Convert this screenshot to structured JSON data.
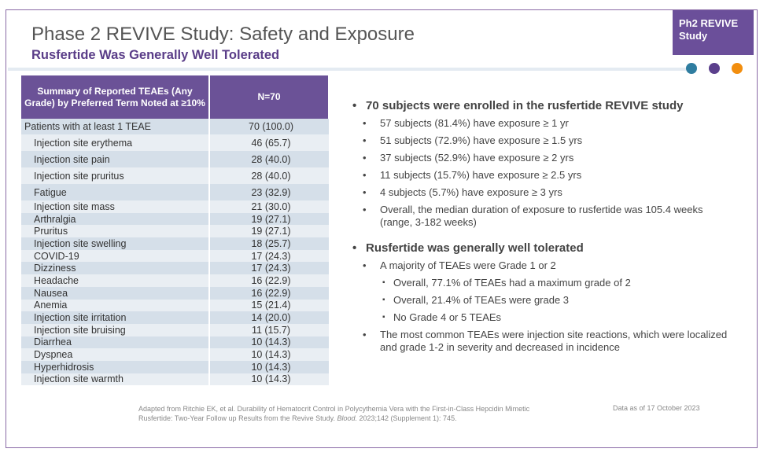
{
  "header": {
    "title": "Phase 2 REVIVE Study: Safety and Exposure",
    "subtitle": "Rusfertide Was Generally Well Tolerated",
    "badge": [
      "Ph2 REVIVE",
      "Study"
    ]
  },
  "table": {
    "header": [
      "Summary of Reported TEAEs (Any Grade) by Preferred Term Noted at ≥10%",
      "N=70"
    ],
    "rows": [
      [
        "Patients with at least 1 TEAE",
        "70 (100.0)"
      ],
      [
        "Injection site erythema",
        "46 (65.7)"
      ],
      [
        "Injection site pain",
        "28 (40.0)"
      ],
      [
        "Injection site pruritus",
        "28 (40.0)"
      ],
      [
        "Fatigue",
        "23 (32.9)"
      ],
      [
        "Injection site mass",
        "21 (30.0)"
      ],
      [
        "Arthralgia",
        "19 (27.1)"
      ],
      [
        "Pruritus",
        "19 (27.1)"
      ],
      [
        "Injection site swelling",
        "18 (25.7)"
      ],
      [
        "COVID-19",
        "17 (24.3)"
      ],
      [
        "Dizziness",
        "17 (24.3)"
      ],
      [
        "Headache",
        "16 (22.9)"
      ],
      [
        "Nausea",
        "16 (22.9)"
      ],
      [
        "Anemia",
        "15 (21.4)"
      ],
      [
        "Injection site irritation",
        "14 (20.0)"
      ],
      [
        "Injection site bruising",
        "11 (15.7)"
      ],
      [
        "Diarrhea",
        "10 (14.3)"
      ],
      [
        "Dyspnea",
        "10 (14.3)"
      ],
      [
        "Hyperhidrosis",
        "10 (14.3)"
      ],
      [
        "Injection site warmth",
        "10 (14.3)"
      ]
    ]
  },
  "bullets": [
    {
      "text": "70 subjects were enrolled in the rusfertide REVIVE study",
      "items": [
        {
          "text": "57 subjects (81.4%) have exposure ≥ 1 yr"
        },
        {
          "text": "51 subjects (72.9%) have exposure ≥ 1.5 yrs"
        },
        {
          "text": "37 subjects (52.9%) have exposure ≥ 2 yrs"
        },
        {
          "text": "11 subjects (15.7%) have exposure ≥ 2.5 yrs"
        },
        {
          "text": "4 subjects (5.7%) have exposure ≥ 3 yrs"
        },
        {
          "text": "Overall, the median duration of exposure to rusfertide was 105.4 weeks (range, 3-182 weeks)"
        }
      ]
    },
    {
      "text": "Rusfertide was generally well tolerated",
      "items": [
        {
          "text": "A majority of TEAEs were Grade 1 or 2",
          "items": [
            "Overall, 77.1% of TEAEs had a maximum grade of 2",
            "Overall, 21.4% of TEAEs were grade 3",
            "No Grade 4 or 5 TEAEs"
          ]
        },
        {
          "text": "The most common TEAEs were injection site reactions, which were localized and grade 1-2 in severity and decreased in incidence"
        }
      ]
    }
  ],
  "footnote": {
    "line1": "Adapted from Ritchie EK, et al. Durability of Hematocrit Control in Polycythemia Vera with the First-in-Class Hepcidin Mimetic",
    "line2": [
      "Rusfertide: Two-Year Follow up Results from the Revive Study. ",
      "Blood.",
      "  2023;142 (Supplement 1): 745."
    ],
    "date": "Data as of 17 October 2023"
  }
}
